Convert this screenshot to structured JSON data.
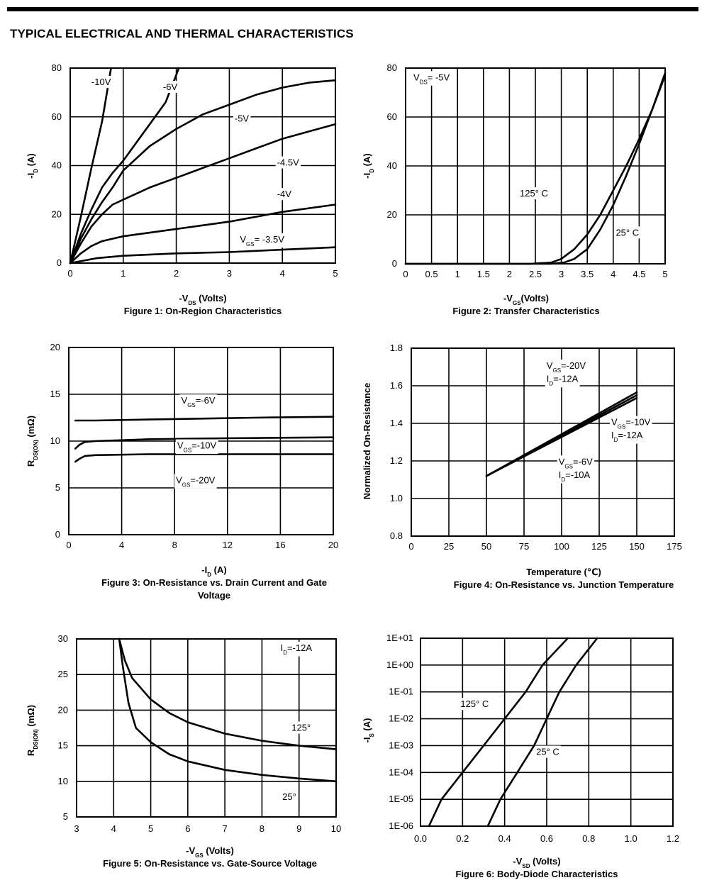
{
  "page": {
    "title": "TYPICAL ELECTRICAL AND THERMAL CHARACTERISTICS"
  },
  "chart_data": [
    {
      "type": "line",
      "caption": "Figure 1: On-Region Characteristics",
      "xlabel": {
        "prefix": "-V",
        "sub": "DS",
        "suffix": " (Volts)"
      },
      "ylabel": {
        "prefix": "-I",
        "sub": "D",
        "suffix": " (A)"
      },
      "xlim": [
        0,
        5
      ],
      "ylim": [
        0,
        80
      ],
      "x_ticks": [
        0,
        1,
        2,
        3,
        4,
        5
      ],
      "x_tick_labels": [
        "0",
        "1",
        "2",
        "3",
        "4",
        "5"
      ],
      "y_ticks": [
        0,
        20,
        40,
        60,
        80
      ],
      "y_tick_labels": [
        "0",
        "20",
        "40",
        "60",
        "80"
      ],
      "grid": true,
      "series": [
        {
          "name": "-10V",
          "points": [
            [
              0,
              0
            ],
            [
              0.2,
              19
            ],
            [
              0.4,
              39
            ],
            [
              0.6,
              58
            ],
            [
              0.77,
              80
            ]
          ]
        },
        {
          "name": "-6V",
          "points": [
            [
              0,
              0
            ],
            [
              0.2,
              12
            ],
            [
              0.4,
              22
            ],
            [
              0.6,
              31
            ],
            [
              0.8,
              37
            ],
            [
              1.0,
              42
            ],
            [
              1.3,
              51
            ],
            [
              1.6,
              60
            ],
            [
              1.8,
              66
            ],
            [
              2.05,
              80
            ]
          ]
        },
        {
          "name": "-5V",
          "points": [
            [
              0,
              0
            ],
            [
              0.2,
              10
            ],
            [
              0.4,
              18
            ],
            [
              0.6,
              25
            ],
            [
              0.8,
              31
            ],
            [
              1,
              38
            ],
            [
              1.5,
              48
            ],
            [
              2,
              55
            ],
            [
              2.5,
              61
            ],
            [
              3,
              65
            ],
            [
              3.5,
              69
            ],
            [
              4,
              72
            ],
            [
              4.5,
              74
            ],
            [
              5,
              75
            ]
          ]
        },
        {
          "name": "-4.5V",
          "points": [
            [
              0,
              0
            ],
            [
              0.2,
              8
            ],
            [
              0.4,
              15
            ],
            [
              0.6,
              20
            ],
            [
              0.8,
              24
            ],
            [
              1,
              26
            ],
            [
              1.5,
              31
            ],
            [
              2,
              35
            ],
            [
              2.5,
              39
            ],
            [
              3,
              43
            ],
            [
              3.5,
              47
            ],
            [
              4,
              51
            ],
            [
              4.5,
              54
            ],
            [
              5,
              57
            ]
          ]
        },
        {
          "name": "-4V",
          "points": [
            [
              0,
              0
            ],
            [
              0.2,
              4
            ],
            [
              0.4,
              7
            ],
            [
              0.6,
              9
            ],
            [
              0.8,
              10
            ],
            [
              1,
              11
            ],
            [
              2,
              14
            ],
            [
              3,
              17
            ],
            [
              4,
              21
            ],
            [
              5,
              24
            ]
          ]
        },
        {
          "name": "VGS=-3.5V",
          "points": [
            [
              0,
              0
            ],
            [
              0.5,
              2
            ],
            [
              1,
              3
            ],
            [
              2,
              4
            ],
            [
              3,
              4.5
            ],
            [
              4,
              5.5
            ],
            [
              5,
              6.5
            ]
          ]
        }
      ],
      "annotations": [
        {
          "text": "-10V",
          "x": 0.4,
          "y": 73
        },
        {
          "text": "-6V",
          "x": 1.75,
          "y": 71
        },
        {
          "text": "-5V",
          "x": 3.1,
          "y": 58
        },
        {
          "text": "-4.5V",
          "x": 3.9,
          "y": 40
        },
        {
          "text": "-4V",
          "x": 3.9,
          "y": 27
        },
        {
          "prefix": "V",
          "sub": "GS",
          "suffix": "= -3.5V",
          "x": 3.2,
          "y": 8.5
        }
      ]
    },
    {
      "type": "line",
      "caption": "Figure 2: Transfer Characteristics",
      "xlabel": {
        "prefix": "-V",
        "sub": "GS",
        "suffix": "(Volts)"
      },
      "ylabel": {
        "prefix": "-I",
        "sub": "D",
        "suffix": " (A)"
      },
      "xlim": [
        0,
        5
      ],
      "ylim": [
        0,
        80
      ],
      "x_ticks": [
        0,
        0.5,
        1,
        1.5,
        2,
        2.5,
        3,
        3.5,
        4,
        4.5,
        5
      ],
      "x_tick_labels": [
        "0",
        "0.5",
        "1",
        "1.5",
        "2",
        "2.5",
        "3",
        "3.5",
        "4",
        "4.5",
        "5"
      ],
      "y_ticks": [
        0,
        20,
        40,
        60,
        80
      ],
      "y_tick_labels": [
        "0",
        "20",
        "40",
        "60",
        "80"
      ],
      "grid": true,
      "series": [
        {
          "name": "125° C",
          "points": [
            [
              0,
              0
            ],
            [
              2.4,
              0
            ],
            [
              2.8,
              0.5
            ],
            [
              3.0,
              2
            ],
            [
              3.25,
              6
            ],
            [
              3.5,
              12
            ],
            [
              3.75,
              20
            ],
            [
              4,
              30
            ],
            [
              4.25,
              40
            ],
            [
              4.5,
              51
            ],
            [
              4.75,
              63
            ],
            [
              5,
              77
            ]
          ]
        },
        {
          "name": "25° C",
          "points": [
            [
              0,
              0
            ],
            [
              2.8,
              0
            ],
            [
              3.05,
              0.5
            ],
            [
              3.25,
              2
            ],
            [
              3.5,
              6
            ],
            [
              3.75,
              14
            ],
            [
              4,
              24
            ],
            [
              4.25,
              36
            ],
            [
              4.5,
              49
            ],
            [
              4.75,
              63
            ],
            [
              5,
              78
            ]
          ]
        }
      ],
      "annotations": [
        {
          "prefix": "V",
          "sub": "DS",
          "suffix": "= -5V",
          "x": 0.15,
          "y": 75
        },
        {
          "text": "125° C",
          "x": 2.2,
          "y": 27.5
        },
        {
          "text": "25° C",
          "x": 4.05,
          "y": 11.5
        }
      ]
    },
    {
      "type": "line",
      "caption": "Figure 3: On-Resistance vs. Drain Current and Gate Voltage",
      "xlabel": {
        "prefix": "-I",
        "sub": "D",
        "suffix": " (A)"
      },
      "ylabel": {
        "prefix": "R",
        "sub": "DS(ON)",
        "suffix": " (mΩ)"
      },
      "xlim": [
        0,
        20
      ],
      "ylim": [
        0,
        20
      ],
      "x_ticks": [
        0,
        4,
        8,
        12,
        16,
        20
      ],
      "x_tick_labels": [
        "0",
        "4",
        "8",
        "12",
        "16",
        "20"
      ],
      "y_ticks": [
        0,
        5,
        10,
        15,
        20
      ],
      "y_tick_labels": [
        "0",
        "5",
        "10",
        "15",
        "20"
      ],
      "grid": true,
      "series": [
        {
          "name": "VGS=-6V",
          "points": [
            [
              0.5,
              12.2
            ],
            [
              2,
              12.2
            ],
            [
              6,
              12.3
            ],
            [
              10,
              12.4
            ],
            [
              14,
              12.5
            ],
            [
              20,
              12.6
            ]
          ]
        },
        {
          "name": "VGS=-10V",
          "points": [
            [
              0.5,
              9.2
            ],
            [
              0.8,
              9.6
            ],
            [
              1.2,
              9.9
            ],
            [
              2,
              10.0
            ],
            [
              6,
              10.2
            ],
            [
              12,
              10.3
            ],
            [
              20,
              10.4
            ]
          ]
        },
        {
          "name": "VGS=-20V",
          "points": [
            [
              0.5,
              7.8
            ],
            [
              0.8,
              8.1
            ],
            [
              1.2,
              8.4
            ],
            [
              2,
              8.5
            ],
            [
              6,
              8.6
            ],
            [
              12,
              8.6
            ],
            [
              20,
              8.6
            ]
          ]
        }
      ],
      "annotations": [
        {
          "prefix": "V",
          "sub": "GS",
          "suffix": "=-6V",
          "x": 8.5,
          "y": 14
        },
        {
          "prefix": "V",
          "sub": "GS",
          "suffix": "=-10V",
          "x": 8.2,
          "y": 9.2
        },
        {
          "prefix": "V",
          "sub": "GS",
          "suffix": "=-20V",
          "x": 8.1,
          "y": 5.5
        }
      ]
    },
    {
      "type": "line",
      "caption": "Figure 4: On-Resistance vs. Junction Temperature",
      "xlabel": {
        "text": "Temperature (℃)"
      },
      "ylabel": {
        "text": "Normalized On-Resistance"
      },
      "xlim": [
        0,
        175
      ],
      "ylim": [
        0.8,
        1.8
      ],
      "x_ticks": [
        0,
        25,
        50,
        75,
        100,
        125,
        150,
        175
      ],
      "x_tick_labels": [
        "0",
        "25",
        "50",
        "75",
        "100",
        "125",
        "150",
        "175"
      ],
      "y_ticks": [
        0.8,
        1.0,
        1.2,
        1.4,
        1.6,
        1.8
      ],
      "y_tick_labels": [
        "0.8",
        "1.0",
        "1.2",
        "1.4",
        "1.6",
        "1.8"
      ],
      "grid": true,
      "series": [
        {
          "name": "VGS=-20V ID=-12A",
          "points": [
            [
              50,
              1.12
            ],
            [
              150,
              1.565
            ]
          ]
        },
        {
          "name": "VGS=-10V ID=-12A",
          "points": [
            [
              50,
              1.12
            ],
            [
              150,
              1.55
            ]
          ]
        },
        {
          "name": "VGS=-6V ID=-10A",
          "points": [
            [
              50,
              1.12
            ],
            [
              150,
              1.535
            ]
          ]
        }
      ],
      "annotations": [
        {
          "prefix": "V",
          "sub": "GS",
          "suffix": "=-20V",
          "x": 90,
          "y": 1.69
        },
        {
          "prefix": "I",
          "sub": "D",
          "suffix": "=-12A",
          "x": 90,
          "y": 1.62
        },
        {
          "prefix": "V",
          "sub": "GS",
          "suffix": "=-10V",
          "x": 133,
          "y": 1.39
        },
        {
          "prefix": "I",
          "sub": "D",
          "suffix": "=-12A",
          "x": 133,
          "y": 1.32
        },
        {
          "prefix": "V",
          "sub": "GS",
          "suffix": "=-6V",
          "x": 98,
          "y": 1.18
        },
        {
          "prefix": "I",
          "sub": "D",
          "suffix": "=-10A",
          "x": 98,
          "y": 1.11
        }
      ]
    },
    {
      "type": "line",
      "caption": "Figure 5: On-Resistance vs. Gate-Source Voltage",
      "xlabel": {
        "prefix": "-V",
        "sub": "GS",
        "suffix": " (Volts)"
      },
      "ylabel": {
        "prefix": "R",
        "sub": "DS(ON)",
        "suffix": " (mΩ)"
      },
      "xlim": [
        3,
        10
      ],
      "ylim": [
        5,
        30
      ],
      "x_ticks": [
        3,
        4,
        5,
        6,
        7,
        8,
        9,
        10
      ],
      "x_tick_labels": [
        "3",
        "4",
        "5",
        "6",
        "7",
        "8",
        "9",
        "10"
      ],
      "y_ticks": [
        5,
        10,
        15,
        20,
        25,
        30
      ],
      "y_tick_labels": [
        "5",
        "10",
        "15",
        "20",
        "25",
        "30"
      ],
      "grid": true,
      "series": [
        {
          "name": "125°",
          "points": [
            [
              4.15,
              30
            ],
            [
              4.3,
              27
            ],
            [
              4.5,
              24.5
            ],
            [
              5,
              21.5
            ],
            [
              5.5,
              19.6
            ],
            [
              6,
              18.3
            ],
            [
              7,
              16.7
            ],
            [
              8,
              15.7
            ],
            [
              9,
              15.0
            ],
            [
              10,
              14.5
            ]
          ]
        },
        {
          "name": "25°",
          "points": [
            [
              4.15,
              30
            ],
            [
              4.25,
              26
            ],
            [
              4.4,
              21
            ],
            [
              4.6,
              17.5
            ],
            [
              5,
              15.5
            ],
            [
              5.5,
              13.8
            ],
            [
              6,
              12.8
            ],
            [
              7,
              11.6
            ],
            [
              8,
              10.9
            ],
            [
              9,
              10.4
            ],
            [
              10,
              10.0
            ]
          ]
        }
      ],
      "annotations": [
        {
          "prefix": "I",
          "sub": "D",
          "suffix": "=-12A",
          "x": 8.5,
          "y": 28.3
        },
        {
          "text": "125°",
          "x": 8.8,
          "y": 17.1
        },
        {
          "text": "25°",
          "x": 8.55,
          "y": 7.4
        }
      ]
    },
    {
      "type": "line",
      "caption": "Figure 6: Body-Diode Characteristics",
      "xlabel": {
        "prefix": "-V",
        "sub": "SD",
        "suffix": " (Volts)"
      },
      "ylabel": {
        "prefix": "-I",
        "sub": "S",
        "suffix": " (A)"
      },
      "xlim": [
        0,
        1.2
      ],
      "ylim": [
        1e-06,
        10
      ],
      "yscale": "log",
      "x_ticks": [
        0,
        0.2,
        0.4,
        0.6,
        0.8,
        1.0,
        1.2
      ],
      "x_tick_labels": [
        "0.0",
        "0.2",
        "0.4",
        "0.6",
        "0.8",
        "1.0",
        "1.2"
      ],
      "y_ticks": [
        1e-06,
        1e-05,
        0.0001,
        0.001,
        0.01,
        0.1,
        1,
        10
      ],
      "y_tick_labels": [
        "1E-06",
        "1E-05",
        "1E-04",
        "1E-03",
        "1E-02",
        "1E-01",
        "1E+00",
        "1E+01"
      ],
      "grid": true,
      "series": [
        {
          "name": "125° C",
          "points": [
            [
              0.04,
              1e-06
            ],
            [
              0.1,
              1e-05
            ],
            [
              0.2,
              0.0001
            ],
            [
              0.3,
              0.001
            ],
            [
              0.4,
              0.01
            ],
            [
              0.5,
              0.1
            ],
            [
              0.58,
              1
            ],
            [
              0.7,
              10
            ]
          ]
        },
        {
          "name": "25° C",
          "points": [
            [
              0.32,
              1e-06
            ],
            [
              0.38,
              1e-05
            ],
            [
              0.46,
              0.0001
            ],
            [
              0.54,
              0.001
            ],
            [
              0.6,
              0.01
            ],
            [
              0.66,
              0.1
            ],
            [
              0.74,
              1
            ],
            [
              0.84,
              10
            ]
          ]
        }
      ],
      "annotations": [
        {
          "text": "125° C",
          "x": 0.19,
          "y": 0.027
        },
        {
          "text": "25° C",
          "x": 0.55,
          "y": 0.00045
        }
      ]
    }
  ]
}
